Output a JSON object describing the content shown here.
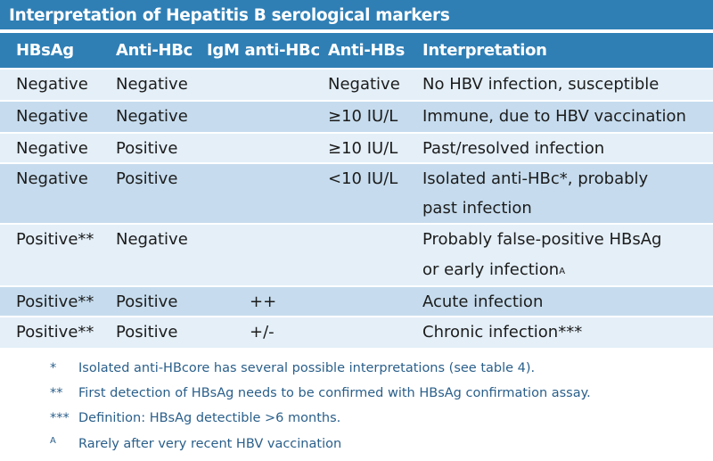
{
  "title": "Interpretation of Hepatitis B serological markers",
  "columns": [
    "HBsAg",
    "Anti-HBc",
    "IgM anti-HBc",
    "Anti-HBs",
    "Interpretation"
  ],
  "rows": [
    {
      "hbsag": "Negative",
      "anti_hbc": "Negative",
      "igm": "",
      "anti_hbs": "Negative",
      "interp": [
        "No HBV infection, susceptible"
      ]
    },
    {
      "hbsag": "Negative",
      "anti_hbc": "Negative",
      "igm": "",
      "anti_hbs": "≥10 IU/L",
      "interp": [
        "Immune, due to HBV vaccination"
      ]
    },
    {
      "hbsag": "Negative",
      "anti_hbc": "Positive",
      "igm": "",
      "anti_hbs": "≥10 IU/L",
      "interp": [
        "Past/resolved infection"
      ]
    },
    {
      "hbsag": "Negative",
      "anti_hbc": "Positive",
      "igm": "",
      "anti_hbs": "<10 IU/L",
      "interp": [
        "Isolated anti-HBc*, probably",
        "past infection"
      ]
    },
    {
      "hbsag": "Positive**",
      "anti_hbc": "Negative",
      "igm": "",
      "anti_hbs": "",
      "interp": [
        "Probably false-positive HBsAg",
        "or early infection"
      ],
      "interp_sup": "A"
    },
    {
      "hbsag": "Positive**",
      "anti_hbc": "Positive",
      "igm": "++",
      "anti_hbs": "",
      "interp": [
        "Acute infection"
      ]
    },
    {
      "hbsag": "Positive**",
      "anti_hbc": "Positive",
      "igm": "+/-",
      "anti_hbs": "",
      "interp": [
        "Chronic infection***"
      ]
    }
  ],
  "footnotes": [
    {
      "mark": "*",
      "text": "Isolated anti-HBcore has several possible interpretations (see table 4)."
    },
    {
      "mark": "**",
      "text": "First detection of HBsAg needs to be confirmed with HBsAg confirmation assay."
    },
    {
      "mark": "***",
      "text": "Definition: HBsAg detectible >6 months."
    },
    {
      "mark": "A",
      "text": "Rarely after very recent HBV vaccination"
    }
  ],
  "colors": {
    "header": "#2f7fb5",
    "row_light": "#e4eff8",
    "row_dark": "#c6dcee",
    "footnote_text": "#2a5f8a"
  }
}
